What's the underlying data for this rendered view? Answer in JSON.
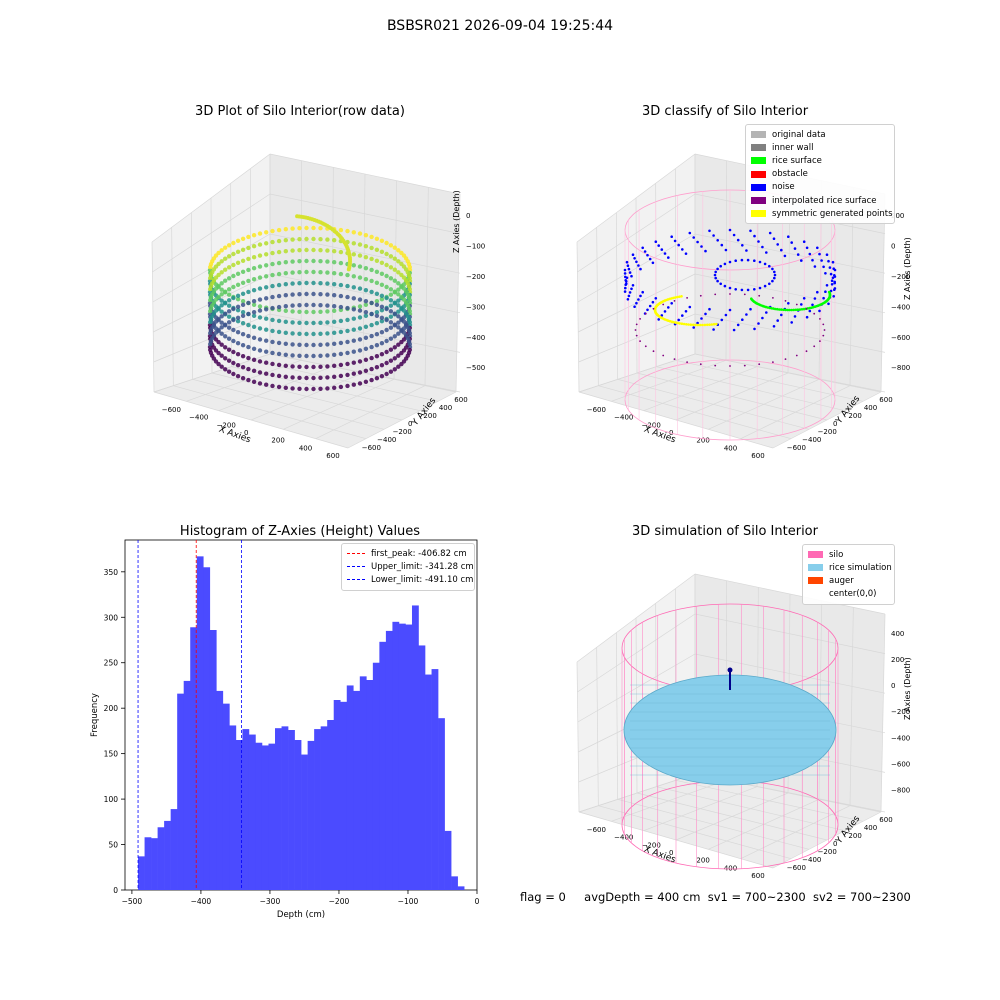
{
  "suptitle": "BSBSR021 2026-09-04 19:25:44",
  "plots": {
    "raw": {
      "title": "3D Plot of Silo Interior(row data)",
      "xlabel": "X Axies",
      "ylabel": "Y Axies",
      "zlabel": "Z Axies (Depth)",
      "xticks": [
        "−600",
        "−400",
        "−200",
        "0",
        "200",
        "400",
        "600"
      ],
      "yticks": [
        "−600",
        "−400",
        "−200",
        "0",
        "200",
        "400",
        "600"
      ],
      "zticks": [
        "0",
        "−100",
        "−200",
        "−300",
        "−400",
        "−500"
      ]
    },
    "classify": {
      "title": "3D classify of Silo Interior",
      "xlabel": "X Axies",
      "ylabel": "Y Axies",
      "zlabel": "Z Axies (Depth)",
      "xticks": [
        "−600",
        "−400",
        "−200",
        "0",
        "200",
        "400",
        "600"
      ],
      "yticks": [
        "−600",
        "−400",
        "−200",
        "0",
        "200",
        "400",
        "600"
      ],
      "zticks": [
        "200",
        "0",
        "−200",
        "−400",
        "−600",
        "−800"
      ],
      "legend": [
        {
          "label": "original data",
          "color": "#b4b4b4"
        },
        {
          "label": "inner wall",
          "color": "#808080"
        },
        {
          "label": "rice surface",
          "color": "#00ff00"
        },
        {
          "label": "obstacle",
          "color": "#ff0000"
        },
        {
          "label": "noise",
          "color": "#0000ff"
        },
        {
          "label": "interpolated rice surface",
          "color": "#800080"
        },
        {
          "label": "symmetric generated points",
          "color": "#ffff00"
        }
      ]
    },
    "simulation": {
      "title": "3D simulation of Silo Interior",
      "xlabel": "X Axies",
      "ylabel": "Y Axies",
      "zlabel": "Z Axies (Depth)",
      "xticks": [
        "−600",
        "−400",
        "−200",
        "0",
        "200",
        "400",
        "600"
      ],
      "yticks": [
        "−600",
        "−400",
        "−200",
        "0",
        "200",
        "400",
        "600"
      ],
      "zticks": [
        "400",
        "200",
        "0",
        "−200",
        "−400",
        "−600",
        "−800"
      ],
      "legend": [
        {
          "label": "silo",
          "color": "#ff69b4"
        },
        {
          "label": "rice simulation",
          "color": "#87ceeb"
        },
        {
          "label": "auger",
          "color": "#ff4500"
        },
        {
          "label": "center(0,0)",
          "color": ""
        }
      ]
    }
  },
  "status": {
    "flag": "flag = 0",
    "avg_depth": "avgDepth = 400 cm",
    "sv1": "sv1 = 700~2300",
    "sv2": "sv2 = 700~2300"
  },
  "chart_data": [
    {
      "type": "histogram",
      "title": "Histogram of Z-Axies (Height) Values",
      "xlabel": "Depth (cm)",
      "ylabel": "Frequency",
      "bar_color": "#4b4bff",
      "xlim": [
        -510,
        0
      ],
      "ylim": [
        0,
        385
      ],
      "xticks": [
        -500,
        -400,
        -300,
        -200,
        -100,
        0
      ],
      "yticks": [
        0,
        50,
        100,
        150,
        200,
        250,
        300,
        350
      ],
      "bin_start": -491.1,
      "bin_width": 9.45,
      "values": [
        37,
        58,
        57,
        69,
        76,
        89,
        216,
        230,
        289,
        367,
        355,
        286,
        219,
        205,
        181,
        165,
        177,
        171,
        162,
        159,
        161,
        178,
        180,
        176,
        165,
        149,
        164,
        177,
        180,
        187,
        209,
        207,
        225,
        219,
        235,
        231,
        250,
        273,
        285,
        295,
        293,
        292,
        313,
        269,
        237,
        243,
        189,
        65,
        15,
        4
      ],
      "vlines": [
        {
          "label": "first_peak: -406.82 cm",
          "x": -406.82,
          "color": "#ff0000"
        },
        {
          "label": "Upper_limit: -341.28 cm",
          "x": -341.28,
          "color": "#0000ff"
        },
        {
          "label": "Lower_limit: -491.10 cm",
          "x": -491.1,
          "color": "#0000ff"
        }
      ]
    }
  ]
}
